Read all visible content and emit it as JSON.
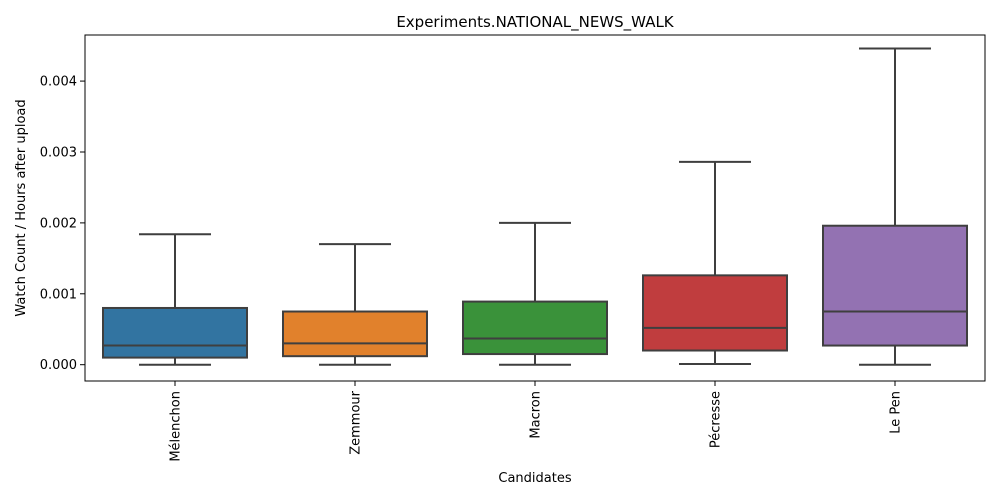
{
  "chart_data": {
    "type": "box",
    "title": "Experiments.NATIONAL_NEWS_WALK",
    "xlabel": "Candidates",
    "ylabel": "Watch Count / Hours after upload",
    "ylim": [
      -0.00023,
      0.00465
    ],
    "yticks": [
      "0.000",
      "0.001",
      "0.002",
      "0.003",
      "0.004"
    ],
    "ytick_values": [
      0,
      0.001,
      0.002,
      0.003,
      0.004
    ],
    "grid": false,
    "categories": [
      "Mélenchon",
      "Zemmour",
      "Macron",
      "Pécresse",
      "Le Pen"
    ],
    "boxes": [
      {
        "category": "Mélenchon",
        "color": "#3274a1",
        "whislo": 0.0,
        "q1": 0.0001,
        "median": 0.00027,
        "q3": 0.0008,
        "whishi": 0.00184
      },
      {
        "category": "Zemmour",
        "color": "#e1812c",
        "whislo": 0.0,
        "q1": 0.00012,
        "median": 0.0003,
        "q3": 0.00075,
        "whishi": 0.0017
      },
      {
        "category": "Macron",
        "color": "#3a923a",
        "whislo": 0.0,
        "q1": 0.00015,
        "median": 0.00037,
        "q3": 0.00089,
        "whishi": 0.002
      },
      {
        "category": "Pécresse",
        "color": "#c03d3e",
        "whislo": 1e-05,
        "q1": 0.0002,
        "median": 0.00052,
        "q3": 0.00126,
        "whishi": 0.00286
      },
      {
        "category": "Le Pen",
        "color": "#9372b2",
        "whislo": 0.0,
        "q1": 0.00027,
        "median": 0.00075,
        "q3": 0.00196,
        "whishi": 0.00446
      }
    ]
  }
}
